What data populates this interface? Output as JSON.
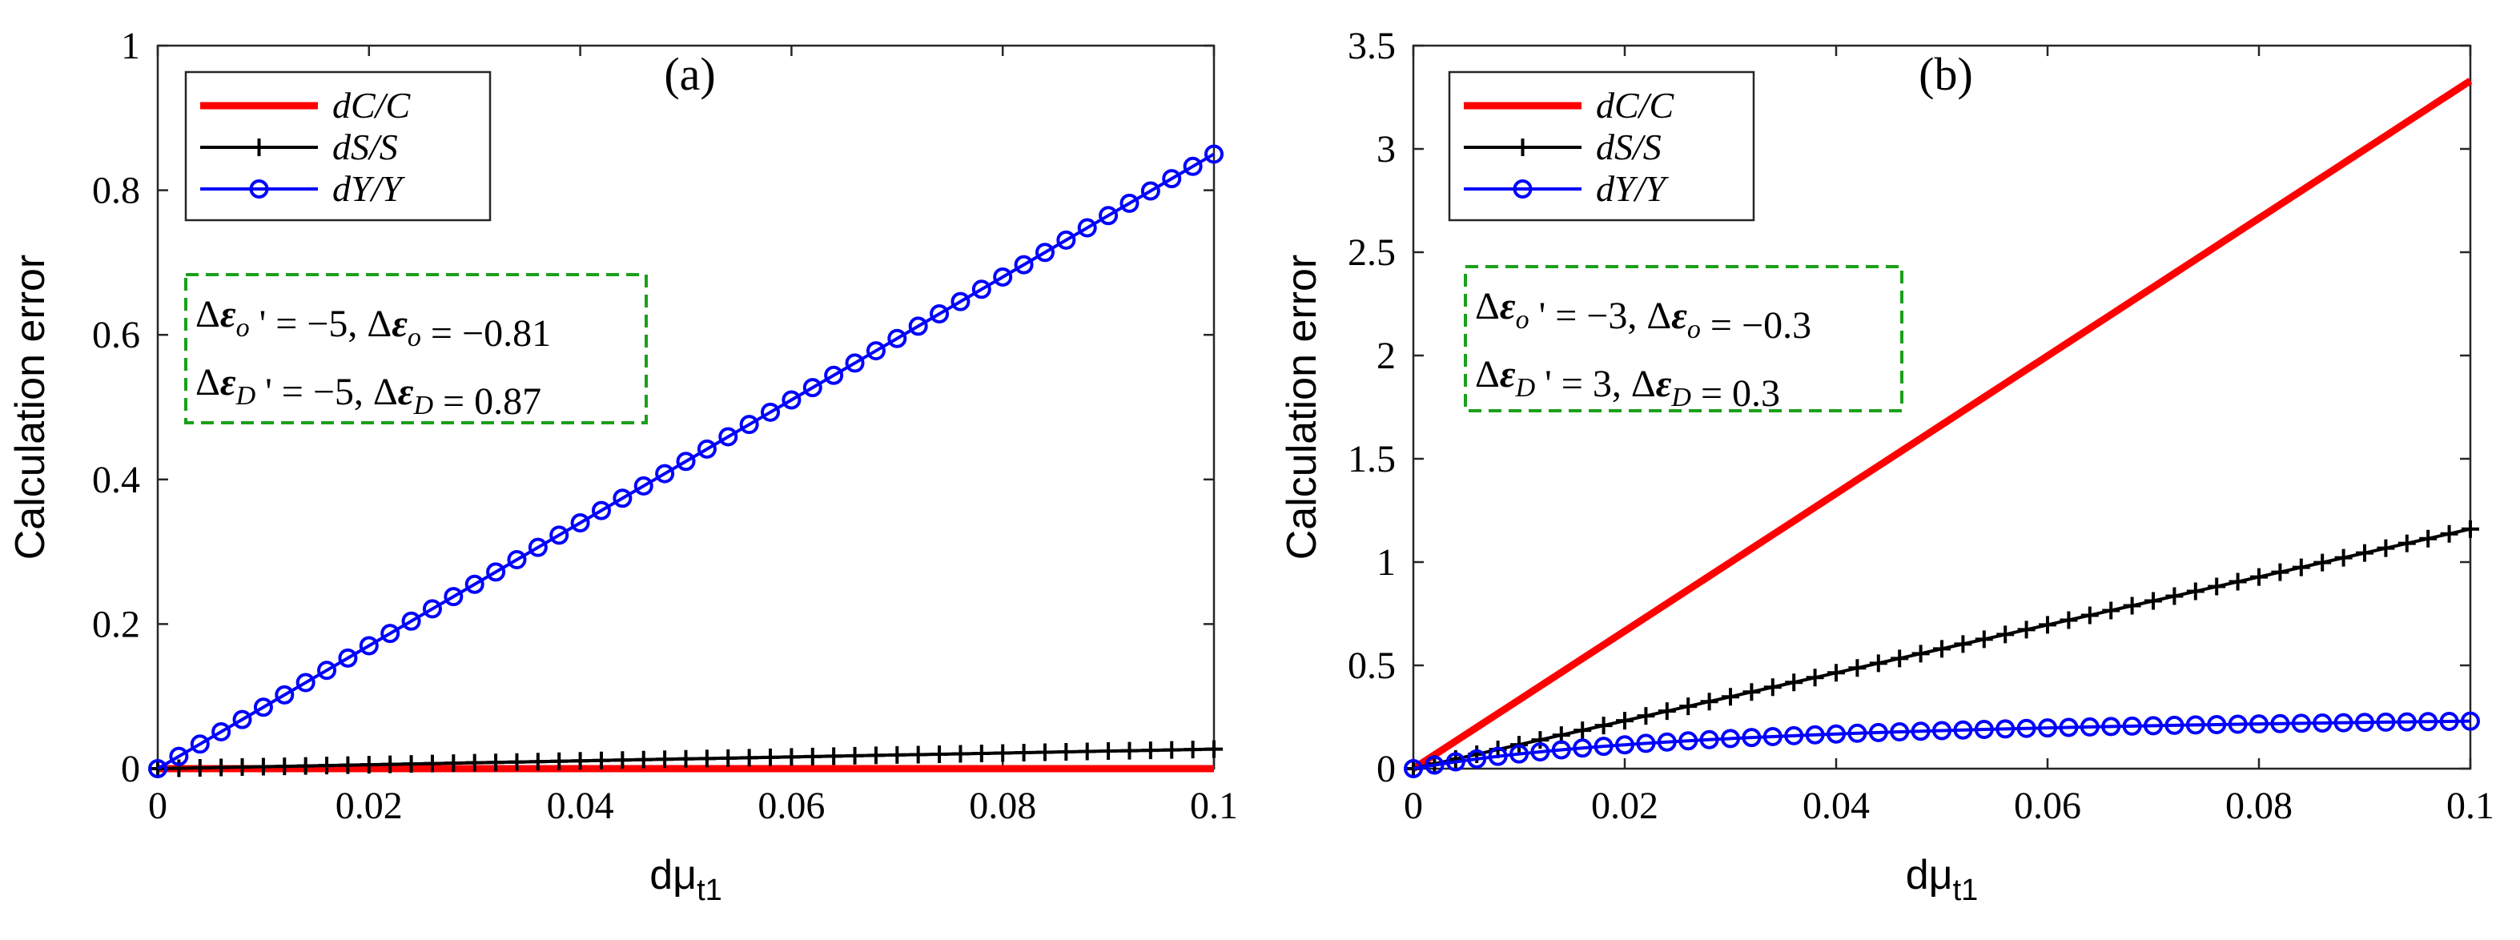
{
  "chart_data": [
    {
      "type": "line",
      "panel_label": "(a)",
      "xlabel": "dμ",
      "xlabel_sub": "t1",
      "ylabel": "Calculation error",
      "xlim": [
        0,
        0.1
      ],
      "ylim": [
        0,
        1
      ],
      "xticks": [
        0,
        0.02,
        0.04,
        0.06,
        0.08,
        0.1
      ],
      "xtick_labels": [
        "0",
        "0.02",
        "0.04",
        "0.06",
        "0.08",
        "0.1"
      ],
      "yticks": [
        0,
        0.2,
        0.4,
        0.6,
        0.8,
        1
      ],
      "ytick_labels": [
        "0",
        "0.2",
        "0.4",
        "0.6",
        "0.8",
        "1"
      ],
      "legend_position": "top-left",
      "annotation": [
        "Δεo ' = −5, Δεo = −0.81",
        "ΔεD ' = −5, ΔεD = 0.87"
      ],
      "series": [
        {
          "name": "dC/C",
          "color": "#ff0000",
          "marker": "none",
          "x_end": 0.1,
          "y_end": 0.0,
          "shape": "linear",
          "points": 51
        },
        {
          "name": "dS/S",
          "color": "#000000",
          "marker": "plus",
          "x_end": 0.1,
          "y_end": 0.027,
          "shape": "linear",
          "points": 51
        },
        {
          "name": "dY/Y",
          "color": "#0000ff",
          "marker": "circle",
          "x_end": 0.1,
          "y_end": 0.85,
          "shape": "linear",
          "points": 51
        }
      ]
    },
    {
      "type": "line",
      "panel_label": "(b)",
      "xlabel": "dμ",
      "xlabel_sub": "t1",
      "ylabel": "Calculation error",
      "xlim": [
        0,
        0.1
      ],
      "ylim": [
        0,
        3.5
      ],
      "xticks": [
        0,
        0.02,
        0.04,
        0.06,
        0.08,
        0.1
      ],
      "xtick_labels": [
        "0",
        "0.02",
        "0.04",
        "0.06",
        "0.08",
        "0.1"
      ],
      "yticks": [
        0,
        0.5,
        1,
        1.5,
        2,
        2.5,
        3,
        3.5
      ],
      "ytick_labels": [
        "0",
        "0.5",
        "1",
        "1.5",
        "2",
        "2.5",
        "3",
        "3.5"
      ],
      "legend_position": "top-left",
      "annotation": [
        "Δεo ' = −3, Δεo = −0.3",
        "ΔεD ' = 3, ΔεD = 0.3"
      ],
      "series": [
        {
          "name": "dC/C",
          "color": "#ff0000",
          "marker": "none",
          "x_end": 0.1,
          "y_end": 3.33,
          "shape": "linear",
          "points": 51
        },
        {
          "name": "dS/S",
          "color": "#000000",
          "marker": "plus",
          "x_end": 0.1,
          "y_end": 1.16,
          "shape": "linear",
          "points": 51
        },
        {
          "name": "dY/Y",
          "color": "#0000ff",
          "marker": "circle",
          "y_max": 0.23,
          "k": 0.033,
          "shape": "saturating",
          "points": 51
        }
      ]
    }
  ]
}
